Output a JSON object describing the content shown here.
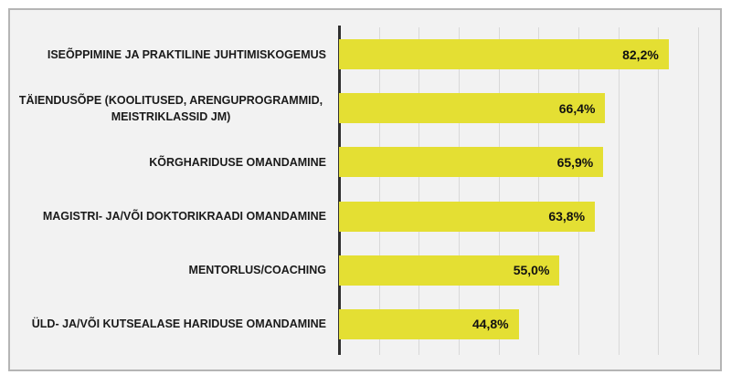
{
  "frame": {
    "outer_background": "#ffffff",
    "background": "#f2f2f2",
    "border_color": "#b5b5b5"
  },
  "chart_data": {
    "type": "bar",
    "orientation": "horizontal",
    "title": "",
    "xlabel": "",
    "ylabel": "",
    "categories": [
      "ISEÕPPIMINE JA PRAKTILINE JUHTIMISKOGEMUS",
      "TÄIENDUSÕPE (KOOLITUSED, ARENGUPROGRAMMID, MEISTRIKLASSID JM)",
      "KÕRGHARIDUSE OMANDAMINE",
      "MAGISTRI- JA/VÕI DOKTORIKRAADI OMANDAMINE",
      "MENTORLUS/COACHING",
      "ÜLD- JA/VÕI KUTSEALASE HARIDUSE OMANDAMINE"
    ],
    "values": [
      82.2,
      66.4,
      65.9,
      63.8,
      55.0,
      44.8
    ],
    "value_labels": [
      "82,2%",
      "66,4%",
      "65,9%",
      "63,8%",
      "55,0%",
      "44,8%"
    ],
    "xlim": [
      0,
      95
    ],
    "gridline_interval": 10,
    "gridline_max": 90,
    "grid": true,
    "legend_position": "none",
    "colors": {
      "bar": "#e4df33",
      "value_label": "#111111",
      "category_label": "#1a1a1a",
      "axis_line": "#303030",
      "gridline": "#d8d8d8"
    }
  }
}
